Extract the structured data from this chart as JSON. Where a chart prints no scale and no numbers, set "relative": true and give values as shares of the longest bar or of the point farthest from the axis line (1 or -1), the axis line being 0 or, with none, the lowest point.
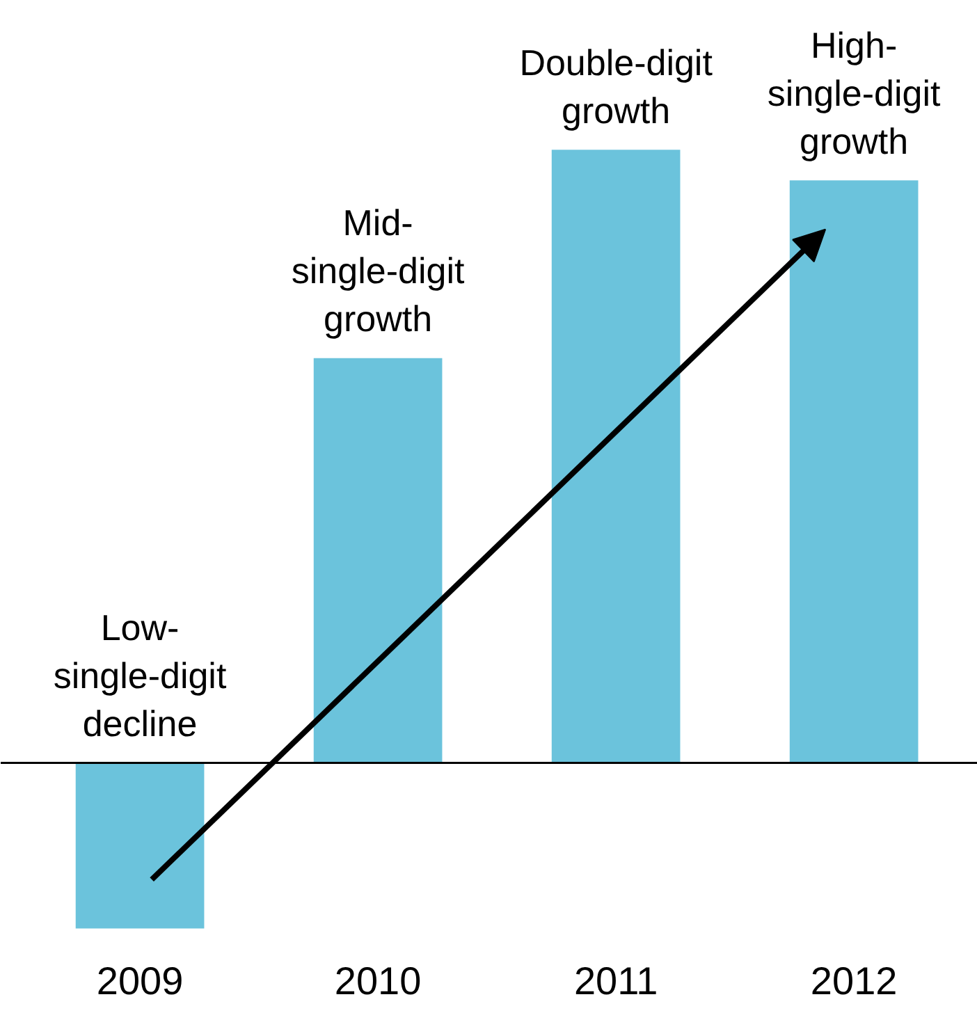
{
  "chart_data": {
    "type": "bar",
    "relative": true,
    "categories": [
      "2009",
      "2010",
      "2011",
      "2012"
    ],
    "values": [
      -0.27,
      0.66,
      1,
      0.95
    ],
    "color": "#6bc3dc",
    "grid": false,
    "annotations": [
      "Low-\nsingle-digit\ndecline",
      "Mid-\nsingle-digit\ngrowth",
      "Double-digit\ngrowth",
      "High-\nsingle-digit\ngrowth"
    ]
  }
}
